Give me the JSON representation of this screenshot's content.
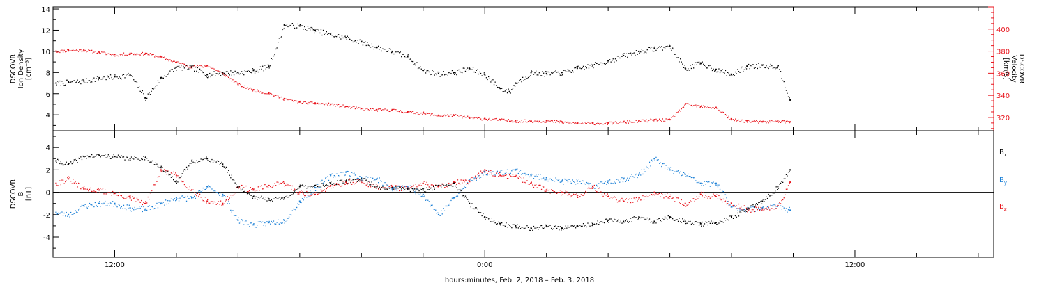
{
  "xaxis": {
    "title": "hours:minutes, Feb.  2, 2018 – Feb.  3, 2018",
    "range_hours_rel_0000": [
      -14.0,
      16.5
    ],
    "labeled_ticks": [
      {
        "h": -12,
        "label": "12:00"
      },
      {
        "h": 0,
        "label": "0:00"
      },
      {
        "h": 12,
        "label": "12:00"
      }
    ],
    "minor_tick_step_h": 2
  },
  "colors": {
    "black": "#000000",
    "red": "#e8141c",
    "blue": "#1a7fd6"
  },
  "chart_data": [
    {
      "type": "scatter",
      "panel": "top",
      "ylabel_left": [
        "DSCOVR",
        "Ion Density",
        "[cm⁻³]"
      ],
      "ylabel_right": [
        "DSCOVR",
        "Velocity",
        "[km/s]"
      ],
      "ylim_left": [
        2.5,
        14.2
      ],
      "yticks_left": [
        4,
        6,
        8,
        10,
        12,
        14
      ],
      "ylim_right": [
        308,
        420
      ],
      "yticks_right": [
        320,
        340,
        360,
        380,
        400
      ],
      "series": [
        {
          "axis": "left",
          "color": "black",
          "x": [
            -13.9,
            -13.5,
            -13.0,
            -12.5,
            -12.0,
            -11.5,
            -11.0,
            -10.5,
            -10.0,
            -9.5,
            -9.0,
            -8.5,
            -8.0,
            -7.5,
            -7.0,
            -6.5,
            -6.0,
            -5.5,
            -5.0,
            -4.5,
            -4.0,
            -3.5,
            -3.0,
            -2.5,
            -2.0,
            -1.5,
            -1.0,
            -0.5,
            0.0,
            0.5,
            0.8,
            1.0,
            1.5,
            2.0,
            2.5,
            3.0,
            3.5,
            4.0,
            4.5,
            5.0,
            5.5,
            6.0,
            6.5,
            7.0,
            7.5,
            8.0,
            8.5,
            9.0,
            9.5,
            9.9
          ],
          "y": [
            7.0,
            7.1,
            7.2,
            7.5,
            7.6,
            7.8,
            5.6,
            7.5,
            8.5,
            8.5,
            7.8,
            8.0,
            8.0,
            8.2,
            8.6,
            12.5,
            12.4,
            12.0,
            11.6,
            11.3,
            10.9,
            10.4,
            10.0,
            9.5,
            8.2,
            7.9,
            8.0,
            8.4,
            7.8,
            6.5,
            6.2,
            7.0,
            8.0,
            7.9,
            8.0,
            8.4,
            8.7,
            9.1,
            9.6,
            10.0,
            10.3,
            10.5,
            8.4,
            8.9,
            8.3,
            7.8,
            8.6,
            8.7,
            8.6,
            5.4
          ]
        },
        {
          "axis": "right",
          "color": "red",
          "x": [
            -13.9,
            -13.5,
            -13.0,
            -12.5,
            -12.0,
            -11.5,
            -11.0,
            -10.5,
            -10.0,
            -9.5,
            -9.0,
            -8.5,
            -8.0,
            -7.5,
            -7.0,
            -6.5,
            -6.0,
            -5.5,
            -5.0,
            -4.5,
            -4.0,
            -3.5,
            -3.0,
            -2.5,
            -2.0,
            -1.5,
            -1.0,
            -0.5,
            0.0,
            0.5,
            1.0,
            1.5,
            2.0,
            2.5,
            3.0,
            3.5,
            4.0,
            4.5,
            5.0,
            5.5,
            6.0,
            6.5,
            7.0,
            7.5,
            8.0,
            8.5,
            9.0,
            9.5,
            9.9
          ],
          "y": [
            380,
            381,
            381,
            379,
            377,
            378,
            378,
            375,
            370,
            366,
            367,
            360,
            350,
            345,
            342,
            337,
            334,
            333,
            332,
            330,
            328,
            327,
            327,
            325,
            324,
            322,
            322,
            320,
            319,
            318,
            317,
            317,
            317,
            316,
            315,
            315,
            315,
            316,
            317,
            318,
            318,
            332,
            330,
            329,
            318,
            317,
            316,
            317,
            316
          ]
        }
      ]
    },
    {
      "type": "scatter",
      "panel": "bottom",
      "ylabel_left": [
        "DSCOVR",
        "B",
        "[nT]"
      ],
      "ylim": [
        -5.8,
        5.5
      ],
      "yticks": [
        -4,
        -2,
        0,
        2,
        4
      ],
      "zero_line": 0,
      "legend": [
        {
          "label": "B",
          "sub": "x",
          "color": "black"
        },
        {
          "label": "B",
          "sub": "y",
          "color": "blue"
        },
        {
          "label": "B",
          "sub": "z",
          "color": "red"
        }
      ],
      "series": [
        {
          "color": "black",
          "x": [
            -13.9,
            -13.5,
            -13.0,
            -12.5,
            -12.0,
            -11.5,
            -11.0,
            -10.5,
            -10.0,
            -9.5,
            -9.0,
            -8.5,
            -8.0,
            -7.5,
            -7.0,
            -6.5,
            -6.0,
            -5.5,
            -5.0,
            -4.5,
            -4.0,
            -3.5,
            -3.0,
            -2.5,
            -2.0,
            -1.5,
            -1.0,
            -0.5,
            0.0,
            0.5,
            1.0,
            1.5,
            2.0,
            2.5,
            3.0,
            3.5,
            4.0,
            4.5,
            5.0,
            5.5,
            6.0,
            6.5,
            7.0,
            7.5,
            8.0,
            8.5,
            9.0,
            9.5,
            9.9
          ],
          "y": [
            2.8,
            2.5,
            3.2,
            3.3,
            3.2,
            3.0,
            3.1,
            2.2,
            1.0,
            2.8,
            3.0,
            2.5,
            0.5,
            -0.4,
            -0.6,
            -0.5,
            0.5,
            0.6,
            0.8,
            1.0,
            1.2,
            0.5,
            0.4,
            0.3,
            0.2,
            0.6,
            0.8,
            -1.0,
            -2.2,
            -2.8,
            -3.0,
            -3.2,
            -3.0,
            -3.2,
            -3.0,
            -2.8,
            -2.5,
            -2.6,
            -2.2,
            -2.6,
            -2.2,
            -2.6,
            -2.8,
            -2.7,
            -2.2,
            -1.5,
            -0.8,
            0.5,
            2.0
          ]
        },
        {
          "color": "blue",
          "x": [
            -13.9,
            -13.5,
            -13.0,
            -12.5,
            -12.0,
            -11.5,
            -11.0,
            -10.5,
            -10.0,
            -9.5,
            -9.0,
            -8.5,
            -8.0,
            -7.5,
            -7.0,
            -6.5,
            -6.0,
            -5.5,
            -5.0,
            -4.5,
            -4.0,
            -3.5,
            -3.0,
            -2.5,
            -2.0,
            -1.5,
            -1.0,
            -0.5,
            0.0,
            0.5,
            1.0,
            1.5,
            2.0,
            2.5,
            3.0,
            3.5,
            4.0,
            4.5,
            5.0,
            5.5,
            6.0,
            6.5,
            7.0,
            7.5,
            8.0,
            8.5,
            9.0,
            9.5,
            9.9
          ],
          "y": [
            -1.8,
            -2.0,
            -1.2,
            -1.0,
            -1.0,
            -1.4,
            -1.5,
            -1.0,
            -0.5,
            -0.5,
            0.5,
            -0.2,
            -2.5,
            -2.9,
            -2.7,
            -2.5,
            -0.8,
            0.4,
            1.5,
            1.8,
            1.3,
            1.2,
            0.3,
            0.5,
            -0.2,
            -2.0,
            -0.5,
            1.0,
            1.8,
            1.8,
            2.0,
            1.5,
            1.3,
            1.0,
            1.0,
            0.5,
            1.0,
            1.2,
            1.6,
            3.0,
            2.0,
            1.6,
            0.8,
            0.8,
            -1.3,
            -1.5,
            -1.4,
            -1.2,
            -1.6
          ]
        },
        {
          "color": "red",
          "x": [
            -13.9,
            -13.5,
            -13.0,
            -12.5,
            -12.0,
            -11.5,
            -11.0,
            -10.5,
            -10.0,
            -9.5,
            -9.0,
            -8.5,
            -8.0,
            -7.5,
            -7.0,
            -6.5,
            -6.0,
            -5.5,
            -5.0,
            -4.5,
            -4.0,
            -3.5,
            -3.0,
            -2.5,
            -2.0,
            -1.5,
            -1.0,
            -0.5,
            0.0,
            0.5,
            1.0,
            1.5,
            2.0,
            2.5,
            3.0,
            3.5,
            4.0,
            4.5,
            5.0,
            5.5,
            6.0,
            6.5,
            7.0,
            7.5,
            8.0,
            8.5,
            9.0,
            9.5,
            9.9
          ],
          "y": [
            0.8,
            1.2,
            0.3,
            0.2,
            -0.1,
            -0.5,
            -1.0,
            2.0,
            1.5,
            0.2,
            -0.8,
            -1.0,
            0.5,
            0.2,
            0.6,
            0.8,
            0.0,
            -0.2,
            0.6,
            0.9,
            1.0,
            0.5,
            0.5,
            0.3,
            0.8,
            0.5,
            0.9,
            1.0,
            2.0,
            1.5,
            1.4,
            0.8,
            0.2,
            0.0,
            -0.3,
            0.5,
            -0.4,
            -0.8,
            -0.5,
            0.0,
            -0.4,
            -1.0,
            -0.2,
            -0.4,
            -1.0,
            -1.5,
            -1.5,
            -1.2,
            0.9
          ]
        }
      ]
    }
  ]
}
